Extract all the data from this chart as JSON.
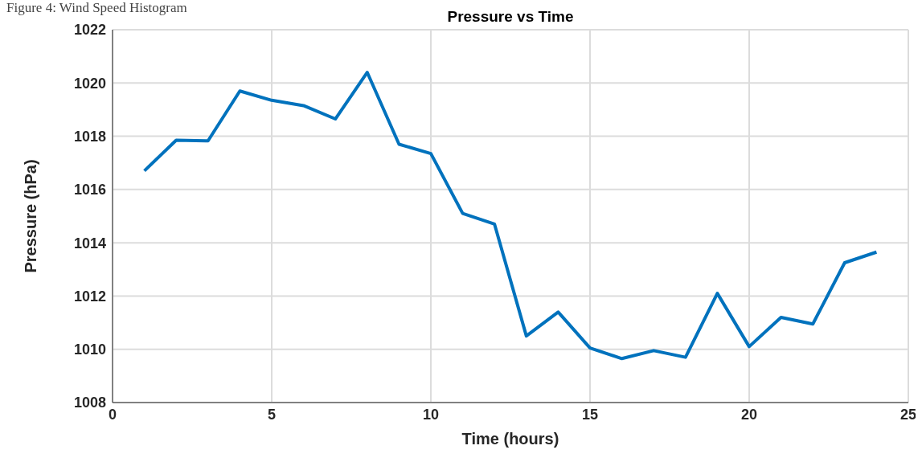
{
  "chart_data": {
    "type": "line",
    "title": "Pressure vs Time",
    "xlabel": "Time (hours)",
    "ylabel": "Pressure (hPa)",
    "annotations": [
      "Figure 4: Wind Speed Histogram"
    ],
    "x": [
      1,
      2,
      3,
      4,
      5,
      6,
      7,
      8,
      9,
      10,
      11,
      12,
      13,
      14,
      15,
      16,
      17,
      18,
      19,
      20,
      21,
      22,
      23,
      24
    ],
    "series": [
      {
        "color": "#0072bd",
        "values": [
          1016.7,
          1017.85,
          1017.83,
          1019.7,
          1019.35,
          1019.15,
          1018.65,
          1020.4,
          1017.7,
          1017.35,
          1015.1,
          1014.7,
          1010.5,
          1011.4,
          1010.05,
          1009.65,
          1009.95,
          1009.7,
          1012.1,
          1010.1,
          1011.2,
          1010.95,
          1013.25,
          1013.65
        ]
      }
    ],
    "xlim": [
      0,
      25
    ],
    "xticks": [
      0,
      5,
      10,
      15,
      20,
      25
    ],
    "ylim": [
      1008,
      1022
    ],
    "yticks": [
      1008,
      1010,
      1012,
      1014,
      1016,
      1018,
      1020,
      1022
    ],
    "grid": true,
    "legend": false,
    "marker": "none",
    "line_style": "solid"
  }
}
